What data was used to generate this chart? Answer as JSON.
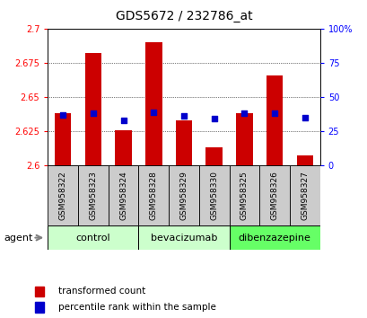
{
  "title": "GDS5672 / 232786_at",
  "samples": [
    "GSM958322",
    "GSM958323",
    "GSM958324",
    "GSM958328",
    "GSM958329",
    "GSM958330",
    "GSM958325",
    "GSM958326",
    "GSM958327"
  ],
  "transformed_counts": [
    2.638,
    2.682,
    2.626,
    2.69,
    2.633,
    2.613,
    2.638,
    2.666,
    2.607
  ],
  "percentile_ranks": [
    37,
    38,
    33,
    39,
    36,
    34,
    38,
    38,
    35
  ],
  "groups": [
    {
      "label": "control",
      "start": 0,
      "end": 2,
      "color": "#ccffcc"
    },
    {
      "label": "bevacizumab",
      "start": 3,
      "end": 5,
      "color": "#ccffcc"
    },
    {
      "label": "dibenzazepine",
      "start": 6,
      "end": 8,
      "color": "#66ff66"
    }
  ],
  "ylim_left": [
    2.6,
    2.7
  ],
  "ylim_right": [
    0,
    100
  ],
  "yticks_left": [
    2.6,
    2.625,
    2.65,
    2.675,
    2.7
  ],
  "yticks_right": [
    0,
    25,
    50,
    75,
    100
  ],
  "ytick_labels_left": [
    "2.6",
    "2.625",
    "2.65",
    "2.675",
    "2.7"
  ],
  "ytick_labels_right": [
    "0",
    "25",
    "50",
    "75",
    "100%"
  ],
  "bar_color": "#cc0000",
  "dot_color": "#0000cc",
  "bar_width": 0.55,
  "agent_label": "agent",
  "legend_bar_label": "transformed count",
  "legend_dot_label": "percentile rank within the sample",
  "sample_box_color": "#cccccc",
  "title_fontsize": 10,
  "tick_fontsize": 7,
  "sample_fontsize": 6.5,
  "legend_fontsize": 7.5,
  "group_fontsize": 8
}
